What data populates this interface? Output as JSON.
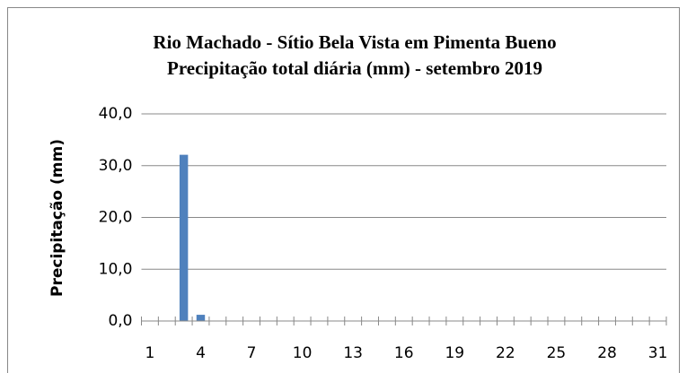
{
  "chart_data": {
    "type": "bar",
    "title": "Rio Machado - Sítio Bela Vista em Pimenta Bueno",
    "subtitle": "Precipitação total diária (mm) - setembro   2019",
    "y_label": "Precipitação (mm)",
    "categories": [
      "1",
      null,
      null,
      "4",
      null,
      null,
      "7",
      null,
      null,
      "10",
      null,
      null,
      "13",
      null,
      null,
      "16",
      null,
      null,
      "19",
      null,
      null,
      "22",
      null,
      null,
      "25",
      null,
      null,
      "28",
      null,
      null,
      "31"
    ],
    "values": [
      0,
      0,
      32.1,
      1.2,
      0,
      0,
      0,
      0,
      0,
      0,
      0,
      0,
      0,
      0,
      0,
      0,
      0,
      0,
      0,
      0,
      0,
      0,
      0,
      0,
      0,
      0,
      0,
      0,
      0,
      0,
      0
    ],
    "color": "#4f81bd",
    "ylim": [
      0,
      40
    ],
    "yticks": [
      {
        "value": 0,
        "label": "0,0"
      },
      {
        "value": 10,
        "label": "10,0"
      },
      {
        "value": 20,
        "label": "20,0"
      },
      {
        "value": 30,
        "label": "30,0"
      },
      {
        "value": 40,
        "label": "40,0"
      }
    ],
    "grid": true
  }
}
